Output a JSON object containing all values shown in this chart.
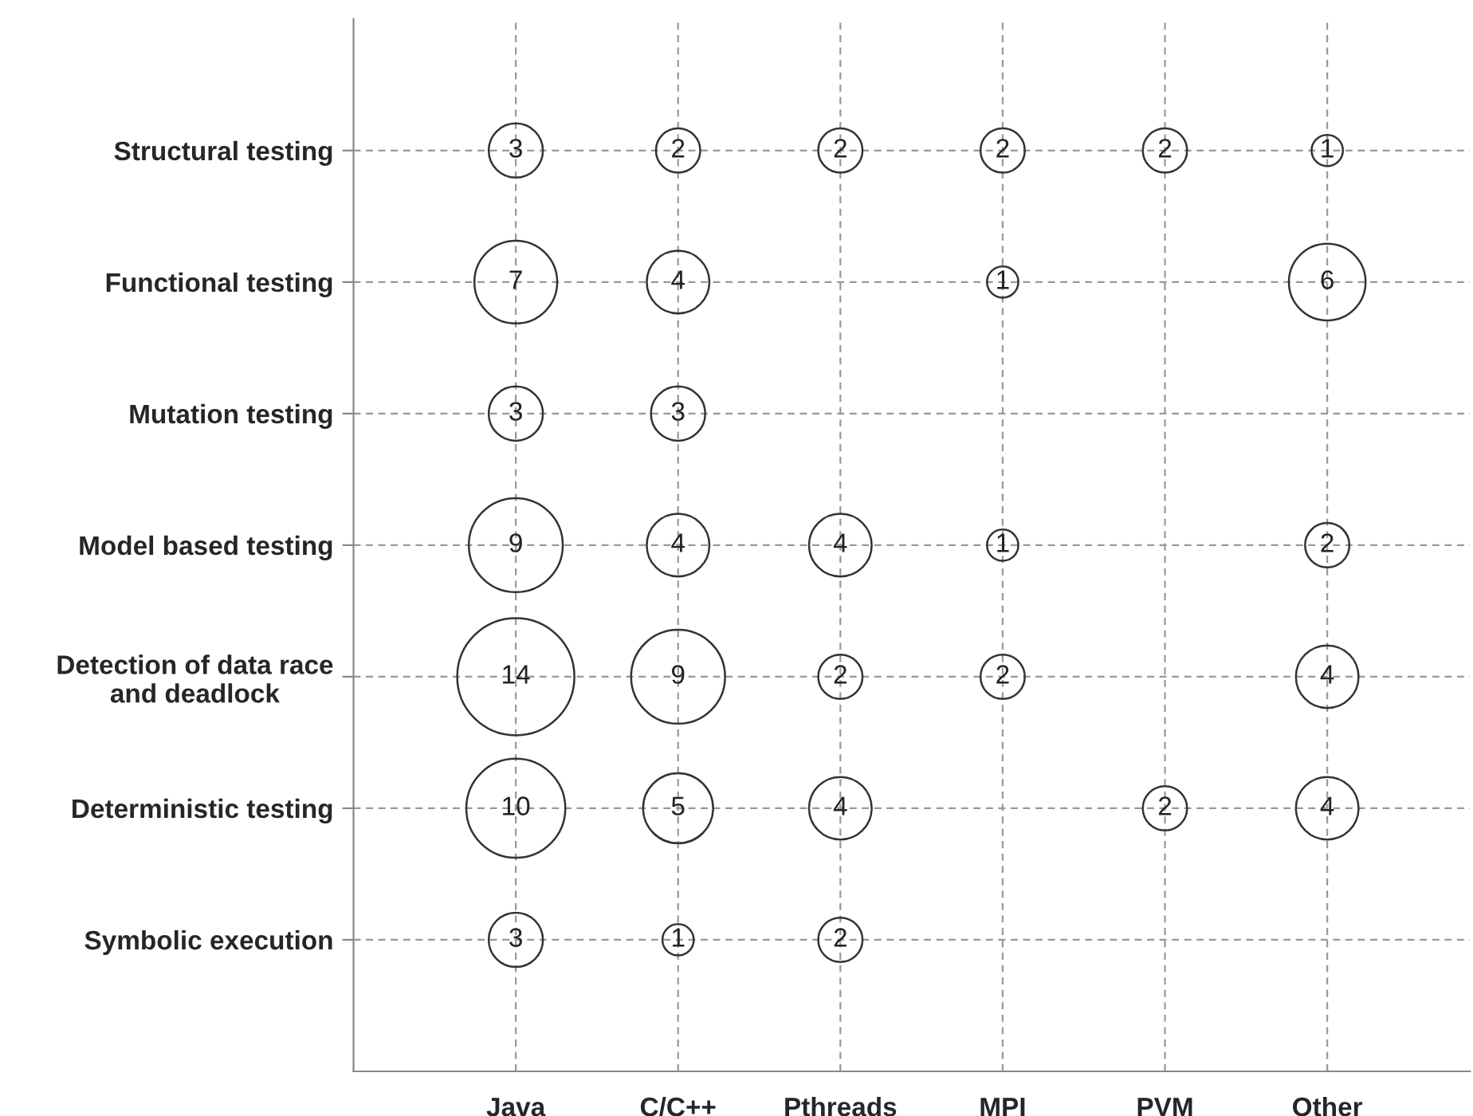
{
  "chart_data": {
    "type": "heatmap",
    "categories": [
      "Java",
      "C/C++",
      "Pthreads",
      "MPI",
      "PVM",
      "Other"
    ],
    "y_categories": [
      "Structural testing",
      "Functional testing",
      "Mutation testing",
      "Model based testing",
      "Detection of data race\nand deadlock",
      "Deterministic testing",
      "Symbolic execution"
    ],
    "cells": [
      [
        3,
        2,
        2,
        2,
        2,
        1
      ],
      [
        7,
        4,
        null,
        1,
        null,
        6
      ],
      [
        3,
        3,
        null,
        null,
        null,
        null
      ],
      [
        9,
        4,
        4,
        1,
        null,
        2
      ],
      [
        14,
        9,
        2,
        2,
        null,
        4
      ],
      [
        10,
        5,
        4,
        null,
        2,
        4
      ],
      [
        3,
        1,
        2,
        null,
        null,
        null
      ]
    ],
    "data_labels": true,
    "grid": true,
    "legend": false
  }
}
